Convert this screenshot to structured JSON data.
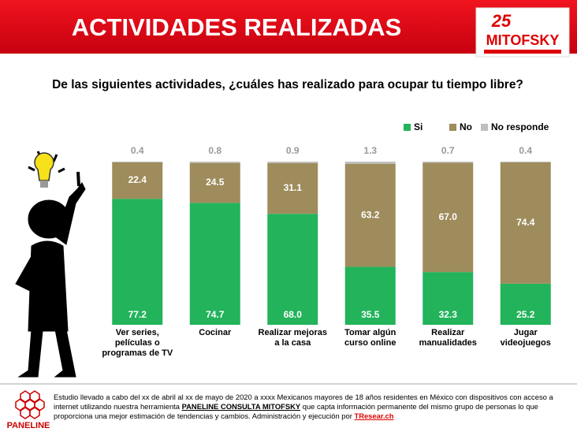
{
  "header": {
    "title": "ACTIVIDADES REALIZADAS",
    "logo_number": "25",
    "logo_name": "MITOFSKY"
  },
  "chart_data": {
    "type": "stacked_bar",
    "title": "De las siguientes actividades, ¿cuáles has realizado para ocupar tu tiempo libre?",
    "categories": [
      "Ver series, películas o programas de TV",
      "Cocinar",
      "Realizar mejoras a la casa",
      "Tomar algún curso online",
      "Realizar manualidades",
      "Jugar videojuegos"
    ],
    "series": [
      {
        "name": "Si",
        "color": "#22b35b",
        "values": [
          77.2,
          74.7,
          68.0,
          35.5,
          32.3,
          25.2
        ],
        "value_labels": [
          "77.2",
          "74.7",
          "68.0",
          "35.5",
          "32.3",
          "25.2"
        ]
      },
      {
        "name": "No",
        "color": "#9f8c5c",
        "values": [
          22.4,
          24.5,
          31.1,
          63.2,
          67.0,
          74.4
        ],
        "value_labels": [
          "22.4",
          "24.5",
          "31.1",
          "63.2",
          "67.0",
          "74.4"
        ]
      },
      {
        "name": "No responde",
        "color": "#bfbfbf",
        "values": [
          0.4,
          0.8,
          0.9,
          1.3,
          0.7,
          0.4
        ],
        "value_labels": [
          "0.4",
          "0.8",
          "0.9",
          "1.3",
          "0.7",
          "0.4"
        ]
      }
    ],
    "ylim": [
      0,
      100
    ],
    "legend": "top-right"
  },
  "footer": {
    "logo": "PANELINE",
    "text_1": "Estudio llevado a cabo del xx de abril al xx de mayo de 2020 a xxxx Mexicanos mayores de 18 años residentes en México con dispositivos con acceso a internet utilizando nuestra herramienta",
    "tool": "PANELINE CONSULTA MITOFSKY",
    "text_2": "que capta información permanente del mismo grupo de personas lo que proporciona una mejor estimación de tendencias y cambios. Administración y ejecución por",
    "link": "TResear.ch"
  }
}
